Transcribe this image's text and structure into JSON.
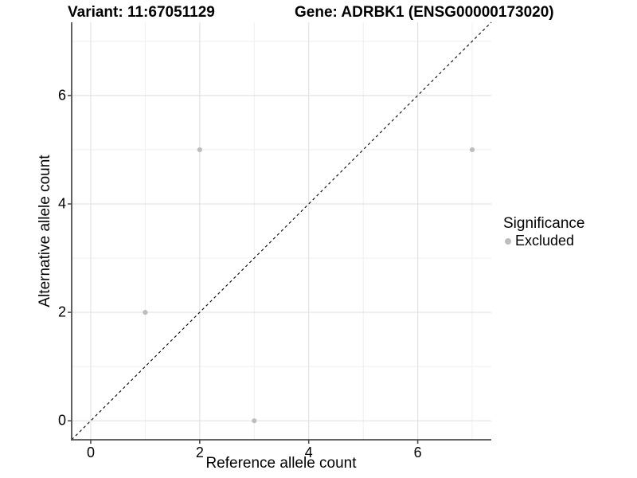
{
  "titles": {
    "variant": "Variant: 11:67051129",
    "gene": "Gene: ADRBK1 (ENSG00000173020)"
  },
  "legend": {
    "title": "Significance",
    "items": [
      {
        "label": "Excluded",
        "color": "#bdbdbd"
      }
    ]
  },
  "colors": {
    "background": "#ffffff",
    "grid_major": "#e3e3e3",
    "grid_minor": "#efefef",
    "axis_line": "#4f4f4f",
    "tick_mark": "#4f4f4f",
    "reference_line": "#000000",
    "point": "#bdbdbd",
    "text": "#000000"
  },
  "chart_data": {
    "type": "scatter",
    "title": "Variant: 11:67051129  /  Gene: ADRBK1 (ENSG00000173020)",
    "xlabel": "Reference allele count",
    "ylabel": "Alternative allele count",
    "xlim": [
      -0.35,
      7.35
    ],
    "ylim": [
      -0.35,
      7.35
    ],
    "x_ticks": [
      0,
      2,
      4,
      6
    ],
    "y_ticks": [
      0,
      2,
      4,
      6
    ],
    "x_minor_ticks": [
      1,
      3,
      5,
      7
    ],
    "y_minor_ticks": [
      1,
      3,
      5,
      7
    ],
    "grid": true,
    "legend_position": "right",
    "reference_line": {
      "type": "identity",
      "style": "dashed"
    },
    "series": [
      {
        "name": "Excluded",
        "color": "#bdbdbd",
        "points": [
          [
            1,
            2
          ],
          [
            2,
            5
          ],
          [
            3,
            0
          ],
          [
            7,
            5
          ]
        ]
      }
    ]
  }
}
